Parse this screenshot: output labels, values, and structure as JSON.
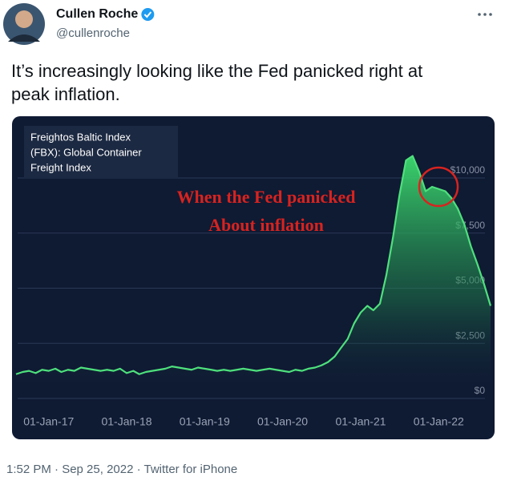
{
  "tweet": {
    "author": "Cullen Roche",
    "handle": "@cullenroche",
    "text_lines": [
      "It’s increasingly looking like the Fed panicked right at",
      "peak inflation."
    ],
    "footer": "1:52 PM · Sep 25, 2022 · Twitter for iPhone"
  },
  "chart_data": {
    "type": "area",
    "title": [
      "Freightos Baltic Index",
      "(FBX): Global Container",
      "Freight Index"
    ],
    "annotation": [
      "When the Fed panicked",
      "About inflation"
    ],
    "x": [
      "2016-08-01",
      "2016-09-01",
      "2016-10-01",
      "2016-11-01",
      "2016-12-01",
      "2017-01-01",
      "2017-02-01",
      "2017-03-01",
      "2017-04-01",
      "2017-05-01",
      "2017-06-01",
      "2017-07-01",
      "2017-08-01",
      "2017-09-01",
      "2017-10-01",
      "2017-11-01",
      "2017-12-01",
      "2018-01-01",
      "2018-02-01",
      "2018-03-01",
      "2018-04-01",
      "2018-05-01",
      "2018-06-01",
      "2018-07-01",
      "2018-08-01",
      "2018-09-01",
      "2018-10-01",
      "2018-11-01",
      "2018-12-01",
      "2019-01-01",
      "2019-02-01",
      "2019-03-01",
      "2019-04-01",
      "2019-05-01",
      "2019-06-01",
      "2019-07-01",
      "2019-08-01",
      "2019-09-01",
      "2019-10-01",
      "2019-11-01",
      "2019-12-01",
      "2020-01-01",
      "2020-02-01",
      "2020-03-01",
      "2020-04-01",
      "2020-05-01",
      "2020-06-01",
      "2020-07-01",
      "2020-08-01",
      "2020-09-01",
      "2020-10-01",
      "2020-11-01",
      "2020-12-01",
      "2021-01-01",
      "2021-02-01",
      "2021-03-01",
      "2021-04-01",
      "2021-05-01",
      "2021-06-01",
      "2021-07-01",
      "2021-08-01",
      "2021-09-01",
      "2021-10-01",
      "2021-11-01",
      "2021-12-01",
      "2022-01-01",
      "2022-02-01",
      "2022-03-01",
      "2022-04-01",
      "2022-05-01",
      "2022-06-01",
      "2022-07-01",
      "2022-08-01",
      "2022-09-01"
    ],
    "series": [
      {
        "name": "FBX",
        "color": "#4ee07c",
        "values": [
          1100,
          1200,
          1250,
          1150,
          1300,
          1250,
          1350,
          1200,
          1300,
          1250,
          1400,
          1350,
          1300,
          1250,
          1300,
          1250,
          1350,
          1150,
          1250,
          1100,
          1200,
          1250,
          1300,
          1350,
          1450,
          1400,
          1350,
          1300,
          1400,
          1350,
          1300,
          1250,
          1300,
          1250,
          1300,
          1350,
          1300,
          1250,
          1300,
          1350,
          1300,
          1250,
          1200,
          1300,
          1250,
          1350,
          1400,
          1500,
          1650,
          1900,
          2300,
          2700,
          3400,
          3900,
          4200,
          4000,
          4300,
          5600,
          7300,
          9200,
          10800,
          11000,
          10300,
          9400,
          9600,
          9500,
          9400,
          9100,
          8600,
          7900,
          6900,
          6100,
          5200,
          4200
        ]
      }
    ],
    "xlim": [
      "2016-08-01",
      "2022-09-01"
    ],
    "xticks": [
      {
        "value": "2017-01-01",
        "label": "01-Jan-17"
      },
      {
        "value": "2018-01-01",
        "label": "01-Jan-18"
      },
      {
        "value": "2019-01-01",
        "label": "01-Jan-19"
      },
      {
        "value": "2020-01-01",
        "label": "01-Jan-20"
      },
      {
        "value": "2021-01-01",
        "label": "01-Jan-21"
      },
      {
        "value": "2022-01-01",
        "label": "01-Jan-22"
      }
    ],
    "ylim": [
      0,
      12000
    ],
    "yticks": [
      {
        "value": 0,
        "label": "$0"
      },
      {
        "value": 2500,
        "label": "$2,500"
      },
      {
        "value": 5000,
        "label": "$5,000"
      },
      {
        "value": 7500,
        "label": "$7,500"
      },
      {
        "value": 10000,
        "label": "$10,000"
      }
    ],
    "grid": true
  }
}
